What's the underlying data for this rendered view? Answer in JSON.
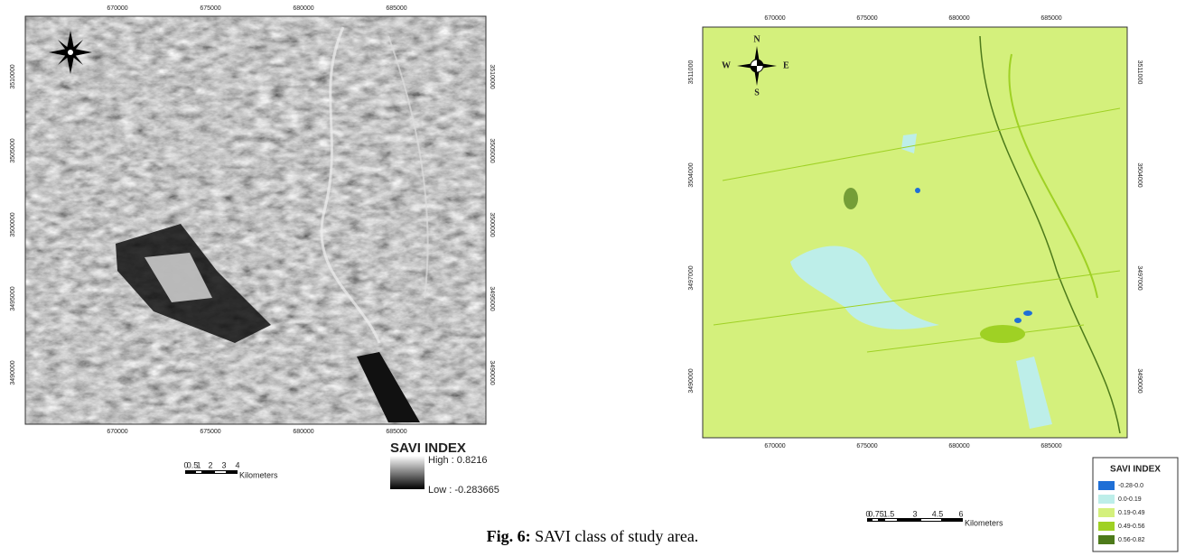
{
  "left_map": {
    "x_ticks": [
      "670000",
      "675000",
      "680000",
      "685000"
    ],
    "y_ticks": [
      "3510000",
      "3505000",
      "3500000",
      "3495000",
      "3490000"
    ],
    "scale_labels": [
      "0",
      "0.5",
      "1",
      "2",
      "3",
      "4"
    ],
    "scale_unit": "Kilometers",
    "legend": {
      "title": "SAVI INDEX",
      "high": "High : 0.8216",
      "low": "Low : -0.283665"
    }
  },
  "right_map": {
    "x_ticks": [
      "670000",
      "675000",
      "680000",
      "685000"
    ],
    "y_ticks": [
      "3511000",
      "3504000",
      "3497000",
      "3490000"
    ],
    "compass": {
      "n": "N",
      "s": "S",
      "w": "W",
      "e": "E"
    },
    "scale_labels": [
      "0",
      "0.75",
      "1.5",
      "3",
      "4.5",
      "6"
    ],
    "scale_unit": "Kilometers",
    "legend": {
      "title": "SAVI INDEX",
      "entries": [
        {
          "label": "-0.28-0.0",
          "color": "#1f6fd6"
        },
        {
          "label": "0.0-0.19",
          "color": "#bdeee9"
        },
        {
          "label": "0.19-0.49",
          "color": "#d4f07c"
        },
        {
          "label": "0.49-0.56",
          "color": "#9fd124"
        },
        {
          "label": "0.56-0.82",
          "color": "#4d7a1a"
        }
      ]
    }
  },
  "caption": {
    "label": "Fig. 6:",
    "text": "SAVI class of study area."
  }
}
